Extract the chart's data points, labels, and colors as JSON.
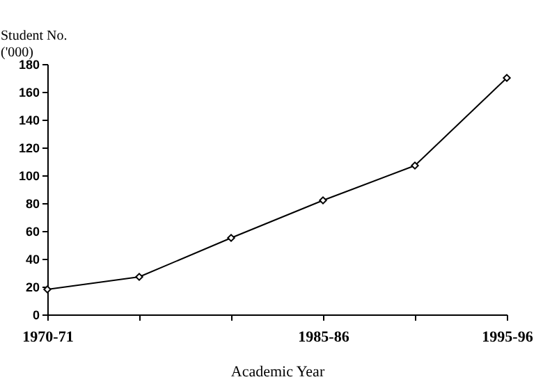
{
  "chart_data": {
    "type": "line",
    "ylabel": "Student No.\n('000)",
    "xlabel": "Academic Year",
    "categories": [
      "1970-71",
      null,
      null,
      "1985-86",
      null,
      "1995-96"
    ],
    "values": [
      18,
      27,
      55,
      82,
      107,
      170
    ],
    "color": "#000000",
    "ylim": [
      0,
      180
    ],
    "yticks": [
      0,
      20,
      40,
      60,
      80,
      100,
      120,
      140,
      160,
      180
    ],
    "grid": false,
    "marker": "diamond",
    "line_style": "solid"
  }
}
